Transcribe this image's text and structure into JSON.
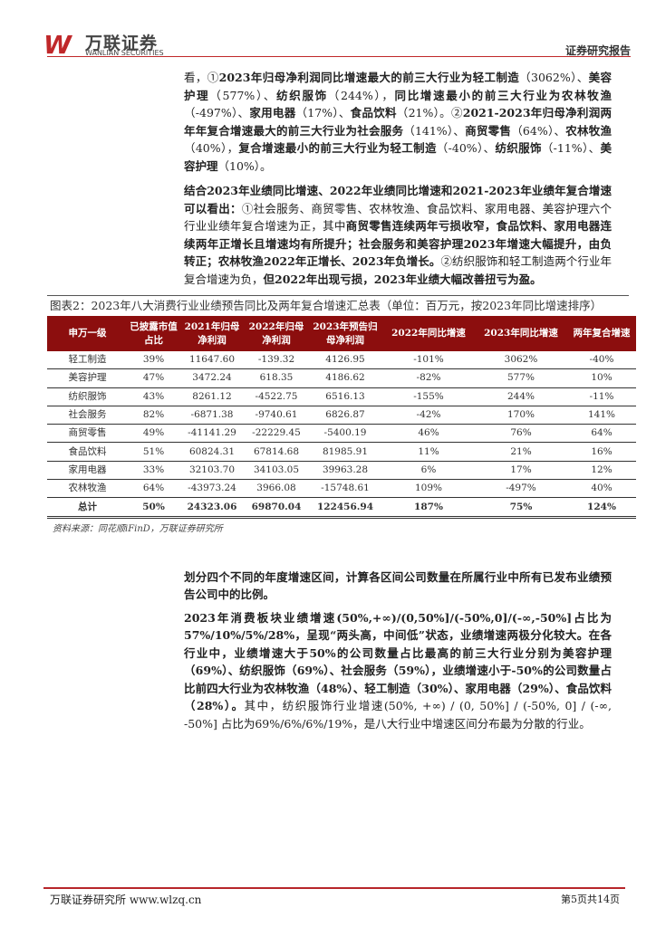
{
  "header": {
    "logo_cn": "万联证券",
    "logo_en": "WANLIAN SECURITIES",
    "logo_mark": "W",
    "report_type": "证券研究报告",
    "accent": "#c0282a"
  },
  "paragraphs": [
    [
      {
        "t": "看，①",
        "b": false
      },
      {
        "t": "2023年归母净利润同比增速最大的前三大行业为轻工制造",
        "b": true
      },
      {
        "t": "（3062%）、",
        "b": false
      },
      {
        "t": "美容护理",
        "b": true
      },
      {
        "t": "（577%）、",
        "b": false
      },
      {
        "t": "纺织服饰",
        "b": true
      },
      {
        "t": "（244%），",
        "b": false
      },
      {
        "t": "同比增速最小的前三大行业为农林牧渔",
        "b": true
      },
      {
        "t": "（-497%）、",
        "b": false
      },
      {
        "t": "家用电器",
        "b": true
      },
      {
        "t": "（17%）、",
        "b": false
      },
      {
        "t": "食品饮料",
        "b": true
      },
      {
        "t": "（21%）。②",
        "b": false
      },
      {
        "t": "2021-2023年归母净利润两年年复合增速最大的前三大行业为社会服务",
        "b": true
      },
      {
        "t": "（141%）、",
        "b": false
      },
      {
        "t": "商贸零售",
        "b": true
      },
      {
        "t": "（64%）、",
        "b": false
      },
      {
        "t": "农林牧渔",
        "b": true
      },
      {
        "t": "（40%），",
        "b": false
      },
      {
        "t": "复合增速最小的前三大行业为轻工制造",
        "b": true
      },
      {
        "t": "（-40%）、",
        "b": false
      },
      {
        "t": "纺织服饰",
        "b": true
      },
      {
        "t": "（-11%）、",
        "b": false
      },
      {
        "t": "美容护理",
        "b": true
      },
      {
        "t": "（10%）。",
        "b": false
      }
    ],
    [
      {
        "t": "结合2023年业绩同比增速、2022年业绩同比增速和2021-2023年业绩年复合增速可以看出：",
        "b": true
      },
      {
        "t": "①社会服务、商贸零售、农林牧渔、食品饮料、家用电器、美容护理六个行业业绩年复合增速为正，其中",
        "b": false
      },
      {
        "t": "商贸零售连续两年亏损收窄，食品饮料、家用电器连续两年正增长且增速均有所提升；社会服务和美容护理2023年增速大幅提升，由负转正；农林牧渔2022年正增长、2023年负增长。",
        "b": true
      },
      {
        "t": "②纺织服饰和轻工制造两个行业年复合增速为负，",
        "b": false
      },
      {
        "t": "但2022年出现亏损，2023年业绩大幅改善扭亏为盈。",
        "b": true
      }
    ],
    [
      {
        "t": "划分四个不同的年度增速区间，计算各区间公司数量在所属行业中所有已发布业绩预告公司中的比例。",
        "b": true
      }
    ],
    [
      {
        "t": "2023年消费板块业绩增速(50%,+∞)/(0,50%]/(-50%,0]/(-∞,-50%]占比为57%/10%/5%/28%，呈现“两头高，中间低”状态，业绩增速两极分化较大。在各行业中，业绩增速大于50%的公司数量占比最高的前三大行业分别为美容护理（69%）、纺织服饰（69%）、社会服务（59%），业绩增速小于-50%的公司数量占比前四大行业为农林牧渔（48%）、轻工制造（30%）、家用电器（29%）、食品饮料（28%）。",
        "b": true
      },
      {
        "t": "其中，纺织服饰行业增速(50%, +∞) / (0, 50%] / (-50%, 0] / (-∞, -50%] 占比为69%/6%/6%/19%，是八大行业中增速区间分布最为分散的行业。",
        "b": false
      }
    ]
  ],
  "figure": {
    "title": "图表2：2023年八大消费行业业绩预告同比及两年复合增速汇总表（单位：百万元，按2023年同比增速排序）",
    "header_color": "#8c0e0e",
    "columns": [
      "申万一级",
      "已披露市值占比",
      "2021年归母净利润",
      "2022年归母净利润",
      "2023年预告归母净利润",
      "2022年同比增速",
      "2023年同比增速",
      "两年复合增速"
    ],
    "rows": [
      [
        "轻工制造",
        "39%",
        "11647.60",
        "-139.32",
        "4126.95",
        "-101%",
        "3062%",
        "-40%"
      ],
      [
        "美容护理",
        "47%",
        "3472.24",
        "618.35",
        "4186.62",
        "-82%",
        "577%",
        "10%"
      ],
      [
        "纺织服饰",
        "43%",
        "8261.12",
        "-4522.75",
        "6516.13",
        "-155%",
        "244%",
        "-11%"
      ],
      [
        "社会服务",
        "82%",
        "-6871.38",
        "-9740.61",
        "6826.87",
        "-42%",
        "170%",
        "141%"
      ],
      [
        "商贸零售",
        "49%",
        "-41141.29",
        "-22229.45",
        "-5400.19",
        "46%",
        "76%",
        "64%"
      ],
      [
        "食品饮料",
        "51%",
        "60824.31",
        "67814.68",
        "81985.91",
        "11%",
        "21%",
        "16%"
      ],
      [
        "家用电器",
        "33%",
        "32103.70",
        "34103.05",
        "39963.28",
        "6%",
        "17%",
        "12%"
      ],
      [
        "农林牧渔",
        "64%",
        "-43973.24",
        "3966.08",
        "-15748.61",
        "109%",
        "-497%",
        "40%"
      ]
    ],
    "total": [
      "总计",
      "50%",
      "24323.06",
      "69870.04",
      "122456.94",
      "187%",
      "75%",
      "124%"
    ],
    "source": "资料来源：同花顺iFinD，万联证券研究所"
  },
  "footer": {
    "left": "万联证券研究所 www.wlzq.cn",
    "right": "第5页共14页"
  }
}
